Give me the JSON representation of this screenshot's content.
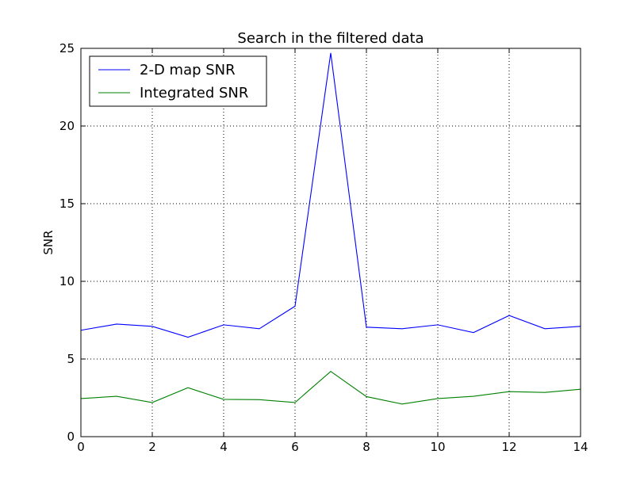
{
  "chart_data": {
    "type": "line",
    "title": "Search in the filtered data",
    "xlabel": "",
    "ylabel": "SNR",
    "xlim": [
      0,
      14
    ],
    "ylim": [
      0,
      25
    ],
    "xticks": [
      0,
      2,
      4,
      6,
      8,
      10,
      12,
      14
    ],
    "yticks": [
      0,
      5,
      10,
      15,
      20,
      25
    ],
    "grid": true,
    "legend_position": "top-left",
    "x": [
      0,
      1,
      2,
      3,
      4,
      5,
      6,
      7,
      8,
      9,
      10,
      11,
      12,
      13,
      14
    ],
    "series": [
      {
        "name": "2-D map SNR",
        "color": "#0000ff",
        "values": [
          6.85,
          7.25,
          7.1,
          6.4,
          7.2,
          6.95,
          8.4,
          24.7,
          7.05,
          6.95,
          7.2,
          6.7,
          7.8,
          6.95,
          7.1
        ]
      },
      {
        "name": "Integrated SNR",
        "color": "#008000",
        "values": [
          2.45,
          2.6,
          2.2,
          3.15,
          2.4,
          2.38,
          2.2,
          4.2,
          2.58,
          2.1,
          2.45,
          2.6,
          2.9,
          2.85,
          3.05
        ]
      }
    ]
  }
}
